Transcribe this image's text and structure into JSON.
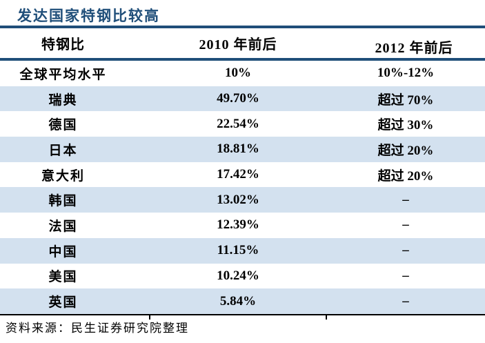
{
  "chart_data": {
    "type": "table",
    "title": "发达国家特钢比较高",
    "columns": [
      "特钢比",
      "2010 年前后",
      "2012 年前后"
    ],
    "rows": [
      [
        "全球平均水平",
        "10%",
        "10%-12%"
      ],
      [
        "瑞典",
        "49.70%",
        "超过 70%"
      ],
      [
        "德国",
        "22.54%",
        "超过 30%"
      ],
      [
        "日本",
        "18.81%",
        "超过 20%"
      ],
      [
        "意大利",
        "17.42%",
        "超过 20%"
      ],
      [
        "韩国",
        "13.02%",
        "–"
      ],
      [
        "法国",
        "12.39%",
        "–"
      ],
      [
        "中国",
        "11.15%",
        "–"
      ],
      [
        "美国",
        "10.24%",
        "–"
      ],
      [
        "英国",
        "5.84%",
        "–"
      ]
    ],
    "source": "资料来源：民生证券研究院整理",
    "layout": {
      "striped_rows": [
        1,
        3,
        5,
        7,
        9
      ],
      "legend": "none",
      "grid": "horizontal rules only"
    }
  },
  "colors": {
    "title_navy": "#1F4E79",
    "header_rule_navy": "#1F4E79",
    "stripe_blue": "#D3E1EF",
    "body_text": "#000000",
    "bottom_rule": "#000000",
    "background": "#FFFFFF"
  }
}
